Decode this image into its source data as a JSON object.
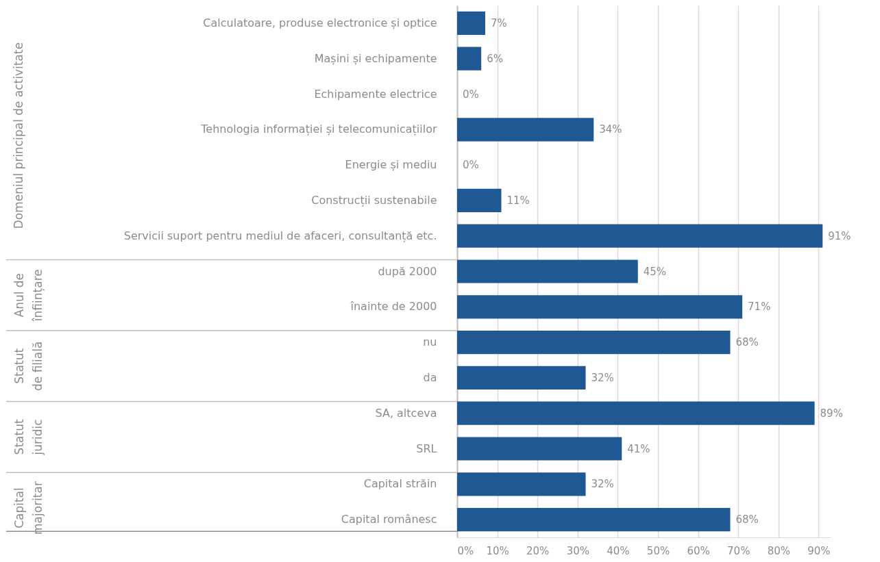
{
  "chart_data": {
    "type": "bar",
    "orientation": "horizontal",
    "categories": [
      "Calculatoare, produse electronice și optice",
      "Mașini și echipamente",
      "Echipamente electrice",
      "Tehnologia informației și telecomunicațiilor",
      "Energie și mediu",
      "Construcții sustenabile",
      "Servicii suport pentru mediul de afaceri, consultanță etc.",
      "după 2000",
      "înainte de 2000",
      "nu",
      "da",
      "SA, altceva",
      "SRL",
      "Capital străin",
      "Capital românesc"
    ],
    "values": [
      7,
      6,
      0,
      34,
      0,
      11,
      91,
      45,
      71,
      68,
      32,
      89,
      41,
      32,
      68
    ],
    "value_labels": [
      "7%",
      "6%",
      "0%",
      "34%",
      "0%",
      "11%",
      "91%",
      "45%",
      "71%",
      "68%",
      "32%",
      "89%",
      "41%",
      "32%",
      "68%"
    ],
    "color": "#1f5892",
    "xlim": [
      0,
      93
    ],
    "xticks": [
      {
        "value": 0,
        "label": "0%"
      },
      {
        "value": 10,
        "label": "10%"
      },
      {
        "value": 20,
        "label": "20%"
      },
      {
        "value": 30,
        "label": "30%"
      },
      {
        "value": 40,
        "label": "40%"
      },
      {
        "value": 50,
        "label": "50%"
      },
      {
        "value": 60,
        "label": "60%"
      },
      {
        "value": 70,
        "label": "70%"
      },
      {
        "value": 80,
        "label": "80%"
      },
      {
        "value": 90,
        "label": "90%"
      }
    ],
    "grid": "x",
    "annotations": [
      "Domeniul principal de activitate",
      "Anul de înființare",
      "Statut de filială",
      "Statut juridic",
      "Capital majoritar"
    ]
  }
}
